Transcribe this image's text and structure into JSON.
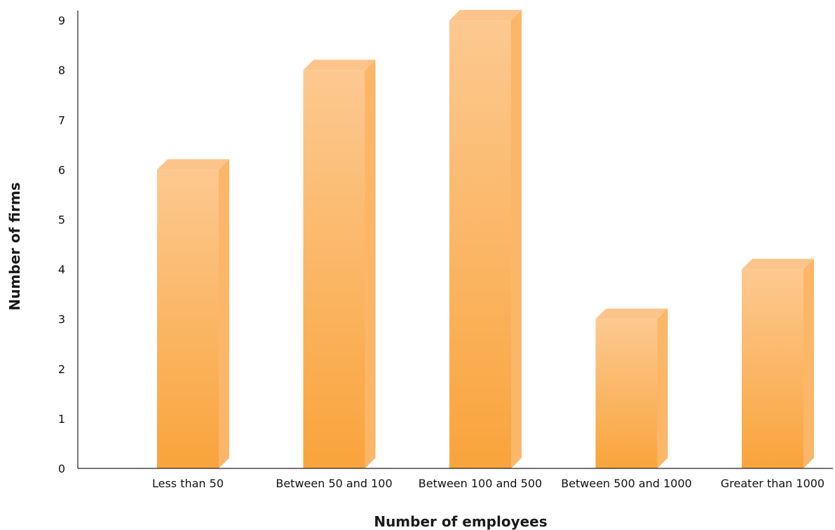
{
  "chart_data": {
    "type": "bar",
    "categories": [
      "Less than 50",
      "Between 50 and 100",
      "Between 100 and 500",
      "Between 500 and 1000",
      "Greater than 1000"
    ],
    "values": [
      6,
      8,
      9,
      3,
      4
    ],
    "title": "",
    "xlabel": "Number of employees",
    "ylabel": "Number of firms",
    "ylim": [
      0,
      9
    ],
    "yticks": [
      0,
      1,
      2,
      3,
      4,
      5,
      6,
      7,
      8,
      9
    ],
    "grid": false,
    "style": "3d-column",
    "colors": {
      "bar_top": "#fcc990",
      "bar_bottom": "#f9a43c",
      "bar_side": "#fbb668",
      "bar_cap": "#fcc48a"
    }
  }
}
